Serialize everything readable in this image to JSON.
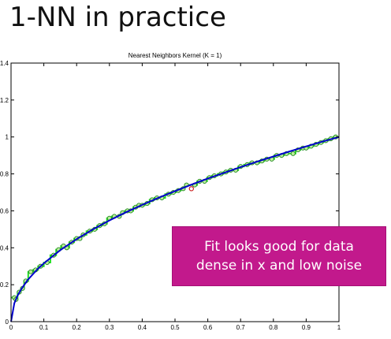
{
  "slide": {
    "title": "1-NN in practice",
    "callout": "Fit looks good for data\ndense in x and low noise"
  },
  "colors": {
    "true_function": "#0000cc",
    "nn_fit": "#22dd22",
    "points_outline": "#228822",
    "points_fill": "#bbee99",
    "query_point": "#cc2222",
    "callout_bg": "#c2198c"
  },
  "chart_data": {
    "type": "line",
    "title": "Nearest Neighbors Kernel (K = 1)",
    "xlabel": "",
    "ylabel": "",
    "xlim": [
      0,
      1
    ],
    "ylim": [
      0,
      1.4
    ],
    "xticks": [
      0,
      0.1,
      0.2,
      0.3,
      0.4,
      0.5,
      0.6,
      0.7,
      0.8,
      0.9,
      1
    ],
    "yticks": [
      0,
      0.2,
      0.4,
      0.6,
      0.8,
      1,
      1.2,
      1.4
    ],
    "xticklabels": [
      "0",
      "0.1",
      "0.2",
      "0.3",
      "0.4",
      "0.5",
      "0.6",
      "0.7",
      "0.8",
      "0.9",
      "1"
    ],
    "yticklabels": [
      "0",
      "0.2",
      "0.4",
      "0.6",
      "0.8",
      "1",
      "1.2",
      "1.4"
    ],
    "grid": false,
    "series": [
      {
        "role": "true-function",
        "x": [
          0,
          0.01,
          0.02,
          0.03,
          0.05,
          0.08,
          0.1,
          0.15,
          0.2,
          0.25,
          0.3,
          0.35,
          0.4,
          0.45,
          0.5,
          0.55,
          0.6,
          0.65,
          0.7,
          0.75,
          0.8,
          0.85,
          0.9,
          0.95,
          1
        ],
        "y": [
          0,
          0.1,
          0.141,
          0.173,
          0.224,
          0.283,
          0.316,
          0.387,
          0.447,
          0.5,
          0.548,
          0.592,
          0.632,
          0.671,
          0.707,
          0.742,
          0.775,
          0.806,
          0.837,
          0.866,
          0.894,
          0.922,
          0.949,
          0.975,
          1
        ]
      },
      {
        "role": "data",
        "x": [
          0.01,
          0.015,
          0.025,
          0.035,
          0.045,
          0.06,
          0.075,
          0.09,
          0.11,
          0.13,
          0.145,
          0.16,
          0.17,
          0.185,
          0.2,
          0.21,
          0.22,
          0.24,
          0.255,
          0.27,
          0.285,
          0.3,
          0.315,
          0.33,
          0.34,
          0.355,
          0.365,
          0.38,
          0.39,
          0.4,
          0.415,
          0.43,
          0.445,
          0.46,
          0.48,
          0.495,
          0.51,
          0.525,
          0.535,
          0.56,
          0.575,
          0.59,
          0.605,
          0.62,
          0.64,
          0.655,
          0.67,
          0.685,
          0.7,
          0.72,
          0.735,
          0.75,
          0.765,
          0.78,
          0.795,
          0.81,
          0.825,
          0.84,
          0.86,
          0.875,
          0.89,
          0.9,
          0.915,
          0.93,
          0.945,
          0.96,
          0.975,
          0.99
        ],
        "y": [
          0.13,
          0.12,
          0.16,
          0.18,
          0.22,
          0.27,
          0.28,
          0.3,
          0.32,
          0.36,
          0.39,
          0.41,
          0.4,
          0.43,
          0.45,
          0.45,
          0.47,
          0.49,
          0.5,
          0.52,
          0.53,
          0.56,
          0.57,
          0.57,
          0.59,
          0.6,
          0.6,
          0.62,
          0.63,
          0.63,
          0.64,
          0.66,
          0.67,
          0.67,
          0.69,
          0.7,
          0.71,
          0.72,
          0.74,
          0.74,
          0.76,
          0.76,
          0.78,
          0.79,
          0.8,
          0.81,
          0.82,
          0.82,
          0.84,
          0.85,
          0.86,
          0.86,
          0.87,
          0.88,
          0.88,
          0.9,
          0.9,
          0.91,
          0.91,
          0.93,
          0.94,
          0.94,
          0.95,
          0.96,
          0.97,
          0.98,
          0.99,
          1.0
        ]
      },
      {
        "role": "query-point",
        "x": [
          0.55
        ],
        "y": [
          0.72
        ]
      }
    ]
  }
}
